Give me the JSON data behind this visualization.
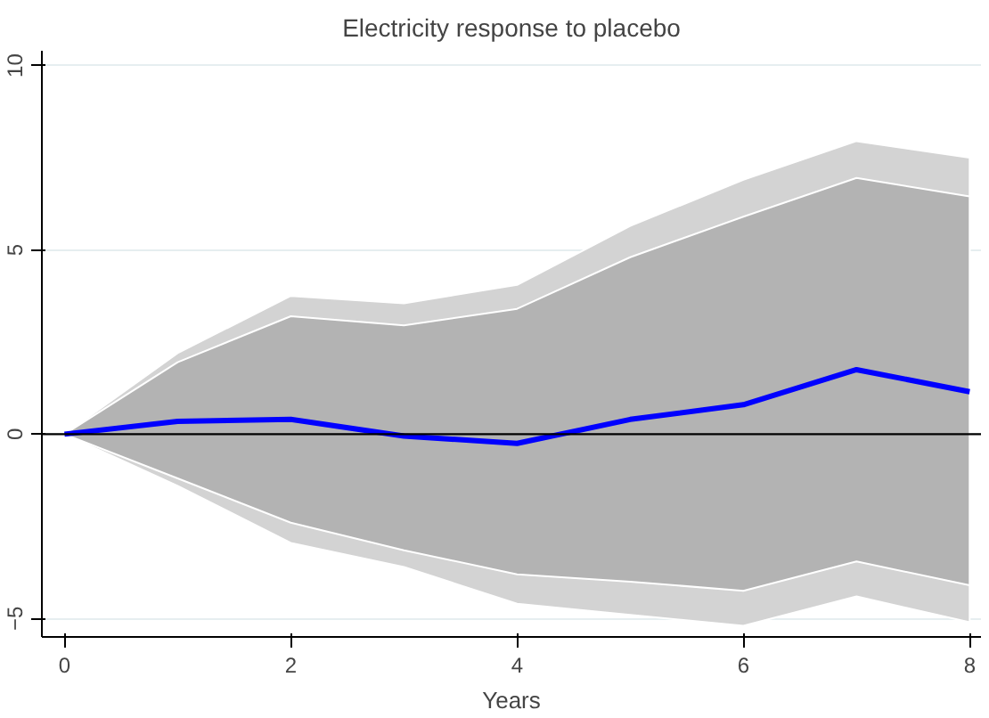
{
  "chart_data": {
    "type": "line",
    "title": "Electricity response to placebo",
    "xlabel": "Years",
    "x": [
      0,
      1,
      2,
      3,
      4,
      5,
      6,
      7,
      8
    ],
    "series": [
      {
        "color": "#d3d3d3",
        "values": [
          null,
          null,
          null,
          null,
          null,
          null,
          null,
          null,
          null
        ],
        "lower": [
          0,
          -1.4,
          -2.95,
          -3.6,
          -4.6,
          -4.9,
          -5.2,
          -4.4,
          -5.1
        ],
        "upper": [
          0,
          2.2,
          3.75,
          3.55,
          4.05,
          5.65,
          6.9,
          7.95,
          7.5
        ]
      },
      {
        "color": "#b3b3b3",
        "values": [
          null,
          null,
          null,
          null,
          null,
          null,
          null,
          null,
          null
        ],
        "lower": [
          0,
          -1.2,
          -2.4,
          -3.15,
          -3.8,
          -4.0,
          -4.25,
          -3.45,
          -4.1
        ],
        "upper": [
          0,
          1.95,
          3.2,
          2.95,
          3.4,
          4.8,
          5.9,
          6.95,
          6.45
        ]
      },
      {
        "color": "#0000ff",
        "values": [
          0,
          0.35,
          0.4,
          -0.05,
          -0.25,
          0.4,
          0.8,
          1.75,
          1.15
        ]
      }
    ],
    "xlim": [
      -0.2,
      8.1
    ],
    "ylim": [
      -5.5,
      10.4
    ],
    "xticks": [
      0,
      2,
      4,
      6,
      8
    ],
    "yticks": [
      -5,
      0,
      5,
      10
    ],
    "ref_lines": [
      {
        "axis": "y",
        "value": 0,
        "color": "#000000"
      }
    ],
    "grid": "y"
  }
}
